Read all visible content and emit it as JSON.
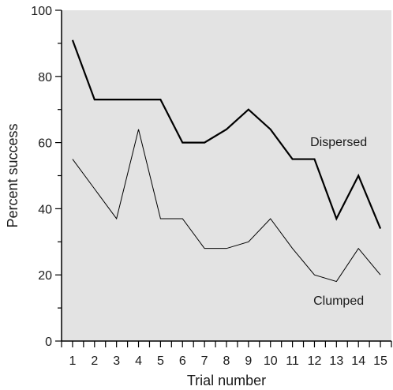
{
  "chart_data": {
    "type": "line",
    "title": "",
    "xlabel": "Trial number",
    "ylabel": "Percent success",
    "x": [
      1,
      2,
      3,
      4,
      5,
      6,
      7,
      8,
      9,
      10,
      11,
      12,
      13,
      14,
      15
    ],
    "xlim": [
      0.5,
      15.5
    ],
    "ylim": [
      0,
      100
    ],
    "y_major_ticks": [
      0,
      20,
      40,
      60,
      80,
      100
    ],
    "y_minor_step": 10,
    "x_tick_labels": [
      "1",
      "2",
      "3",
      "4",
      "5",
      "6",
      "7",
      "8",
      "9",
      "10",
      "11",
      "12",
      "13",
      "14",
      "15"
    ],
    "y_tick_labels": [
      "0",
      "20",
      "40",
      "60",
      "80",
      "100"
    ],
    "grid": false,
    "legend": "none (series labelled directly on plot)",
    "plot_background": "#e3e3e3",
    "series": [
      {
        "name": "Dispersed",
        "color": "#000000",
        "line_weight": "thick",
        "values": [
          91,
          73,
          73,
          73,
          73,
          60,
          60,
          64,
          70,
          64,
          55,
          55,
          37,
          50,
          34
        ]
      },
      {
        "name": "Clumped",
        "color": "#000000",
        "line_weight": "thin",
        "values": [
          55,
          46,
          37,
          64,
          37,
          37,
          28,
          28,
          30,
          37,
          28,
          20,
          18,
          28,
          20
        ]
      }
    ]
  }
}
